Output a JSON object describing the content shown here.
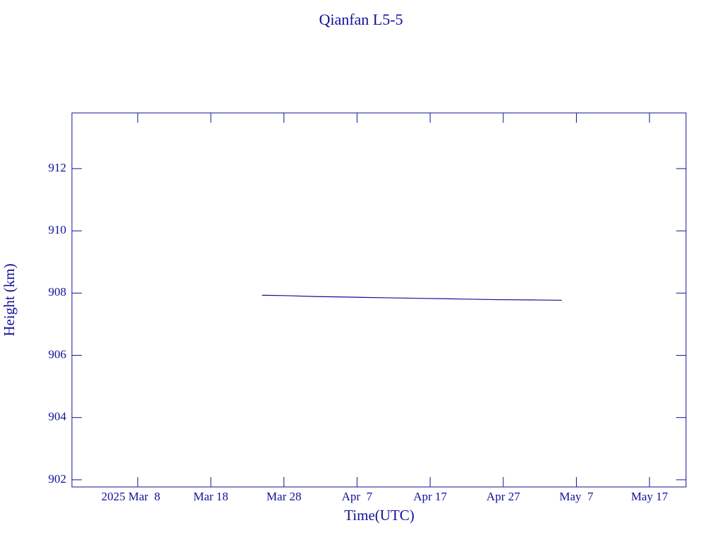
{
  "chart_data": {
    "type": "line",
    "title": "Qianfan L5-5",
    "x_label": "Time(UTC)",
    "y_label": "Height (km)",
    "color": "#10109a",
    "x": [
      "2025-03-25",
      "2025-03-28",
      "2025-04-01",
      "2025-04-06",
      "2025-04-11",
      "2025-04-16",
      "2025-04-21",
      "2025-04-26",
      "2025-05-01",
      "2025-05-05"
    ],
    "values": [
      907.93,
      907.92,
      907.89,
      907.87,
      907.85,
      907.83,
      907.81,
      907.79,
      907.78,
      907.77
    ],
    "xlim": [
      "2025-02-27",
      "2025-05-22"
    ],
    "xticks": [
      {
        "value": "2025-03-08",
        "label": "2025 Mar  8"
      },
      {
        "value": "2025-03-18",
        "label": "Mar 18"
      },
      {
        "value": "2025-03-28",
        "label": "Mar 28"
      },
      {
        "value": "2025-04-07",
        "label": "Apr  7"
      },
      {
        "value": "2025-04-17",
        "label": "Apr 17"
      },
      {
        "value": "2025-04-27",
        "label": "Apr 27"
      },
      {
        "value": "2025-05-07",
        "label": "May  7"
      },
      {
        "value": "2025-05-17",
        "label": "May 17"
      }
    ],
    "ylim": [
      901.77,
      913.79
    ],
    "yticks": [
      902,
      904,
      906,
      908,
      910,
      912
    ]
  }
}
